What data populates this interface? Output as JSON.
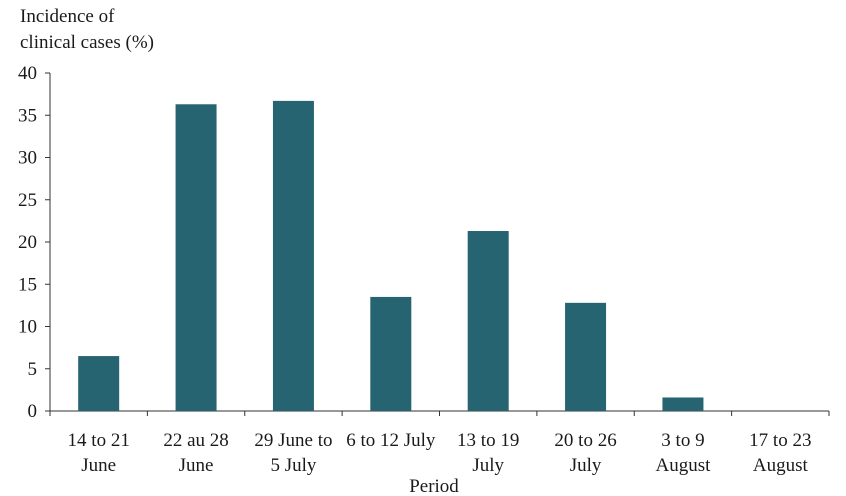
{
  "chart_data": {
    "type": "bar",
    "title": "",
    "ylabel_lines": [
      "Incidence of",
      "clinical cases (%)"
    ],
    "xlabel": "Period",
    "ylim": [
      0,
      40
    ],
    "yticks": [
      0,
      5,
      10,
      15,
      20,
      25,
      30,
      35,
      40
    ],
    "categories": [
      [
        "14 to 21",
        "June"
      ],
      [
        "22 au 28",
        "June"
      ],
      [
        "29 June to",
        "5 July"
      ],
      [
        "6 to 12 July",
        ""
      ],
      [
        "13 to 19",
        "July"
      ],
      [
        "20 to 26",
        "July"
      ],
      [
        "3 to 9",
        "August"
      ],
      [
        "17 to 23",
        "August"
      ]
    ],
    "values": [
      6.5,
      36.3,
      36.7,
      13.5,
      21.3,
      12.8,
      1.6,
      0
    ],
    "bar_color": "#276471",
    "grid": false,
    "legend": "none"
  }
}
